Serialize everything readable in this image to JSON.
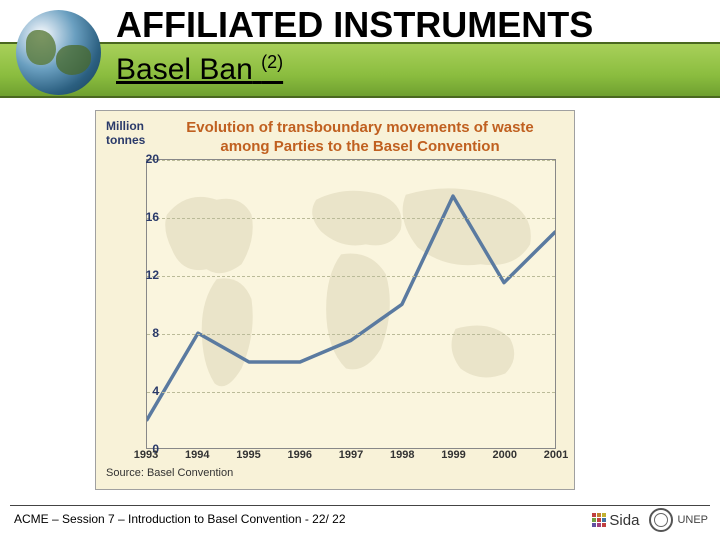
{
  "header": {
    "title": "AFFILIATED INSTRUMENTS",
    "subtitle_main": "Basel Ban",
    "subtitle_sup": "(2)",
    "bar_gradient_top": "#a8d05a",
    "bar_gradient_mid": "#8bbd3f",
    "bar_gradient_bottom": "#6fa030",
    "rule_color": "#4a6820"
  },
  "chart": {
    "type": "line",
    "title": "Evolution of transboundary movements of waste among Parties to the Basel Convention",
    "title_color": "#c06020",
    "title_fontsize": 15,
    "ylabel": "Million tonnes",
    "ylabel_color": "#2a3a6a",
    "ylabel_fontsize": 12,
    "source": "Source: Basel Convention",
    "source_color": "#333333",
    "background_color": "#f8f2d8",
    "plot_background": "#faf5de",
    "border_color": "#a0a0a0",
    "grid_color": "#bbbb99",
    "map_land_color": "#d8d0b0",
    "line_color": "#5a7aa0",
    "line_width": 3.5,
    "x_categories": [
      "1993",
      "1994",
      "1995",
      "1996",
      "1997",
      "1998",
      "1999",
      "2000",
      "2001"
    ],
    "x_label_color": "#333333",
    "y_ticks": [
      0,
      4,
      8,
      12,
      16,
      20
    ],
    "y_label_color": "#2a3a6a",
    "ylim": [
      0,
      20
    ],
    "data_points": [
      {
        "x": "1993",
        "y": 2.0
      },
      {
        "x": "1994",
        "y": 8.0
      },
      {
        "x": "1995",
        "y": 6.0
      },
      {
        "x": "1996",
        "y": 6.0
      },
      {
        "x": "1997",
        "y": 7.5
      },
      {
        "x": "1998",
        "y": 10.0
      },
      {
        "x": "1999",
        "y": 17.5
      },
      {
        "x": "2000",
        "y": 11.5
      },
      {
        "x": "2001",
        "y": 15.0
      }
    ]
  },
  "footer": {
    "text": "ACME – Session 7 – Introduction to Basel Convention - 22/ 22",
    "sida_label": "Sida",
    "unep_label": "UNEP",
    "rule_color": "#444444"
  }
}
